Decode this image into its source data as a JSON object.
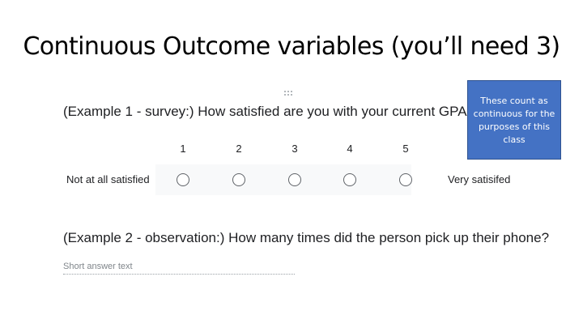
{
  "slide": {
    "title": "Continuous Outcome variables (you’ll need 3)"
  },
  "example1": {
    "question": "(Example 1 - survey:) How satisfied are you with your current GPA?",
    "scale": [
      "1",
      "2",
      "3",
      "4",
      "5"
    ],
    "low_label": "Not at all satisfied",
    "high_label": "Very satisifed"
  },
  "callout": {
    "text": "These count as continuous for the purposes of this class",
    "color": "#4472c4"
  },
  "example2": {
    "question": "(Example 2 - observation:) How many times did the person pick up their phone?",
    "placeholder": "Short answer text"
  },
  "icons": {
    "drag_handle": "drag-handle-icon"
  }
}
